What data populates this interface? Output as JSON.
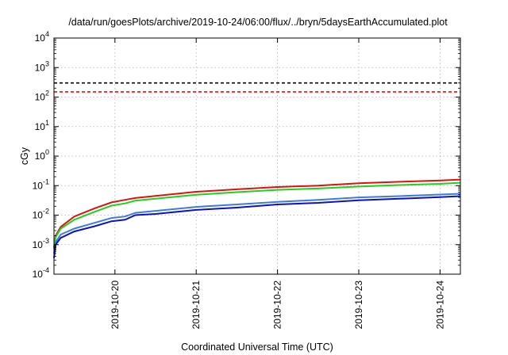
{
  "chart_data": {
    "type": "line",
    "title": "/data/run/goesPlots/archive/2019-10-24/06:00/flux/../bryn/5daysEarthAccumulated.plot",
    "xlabel": "Coordinated Universal Time (UTC)",
    "ylabel": "cGy",
    "x_scale": "time",
    "y_scale": "log",
    "xlim": [
      "2019-10-19 06:00",
      "2019-10-24 06:00"
    ],
    "ylim": [
      0.0001,
      10000
    ],
    "grid": true,
    "legend": "none",
    "x_ticks": [
      "2019-10-20",
      "2019-10-21",
      "2019-10-22",
      "2019-10-23",
      "2019-10-24"
    ],
    "y_ticks": [
      {
        "base": "10",
        "exp": "-4",
        "value": 0.0001
      },
      {
        "base": "10",
        "exp": "-3",
        "value": 0.001
      },
      {
        "base": "10",
        "exp": "-2",
        "value": 0.01
      },
      {
        "base": "10",
        "exp": "-1",
        "value": 0.1
      },
      {
        "base": "10",
        "exp": "0",
        "value": 1
      },
      {
        "base": "10",
        "exp": "1",
        "value": 10
      },
      {
        "base": "10",
        "exp": "2",
        "value": 100
      },
      {
        "base": "10",
        "exp": "3",
        "value": 1000
      },
      {
        "base": "10",
        "exp": "4",
        "value": 10000
      }
    ],
    "thresholds": [
      {
        "value": 300,
        "color": "#000000",
        "style": "dashed"
      },
      {
        "value": 150,
        "color": "#ff0000",
        "style": "dashed"
      }
    ],
    "series": [
      {
        "color": "#e01010",
        "points": [
          [
            "2019-10-19 06:00",
            0.0008
          ],
          [
            "2019-10-19 06:30",
            0.002
          ],
          [
            "2019-10-19 08:00",
            0.004
          ],
          [
            "2019-10-19 12:00",
            0.009
          ],
          [
            "2019-10-19 18:00",
            0.017
          ],
          [
            "2019-10-19 23:00",
            0.027
          ],
          [
            "2019-10-20 03:00",
            0.033
          ],
          [
            "2019-10-20 06:00",
            0.038
          ],
          [
            "2019-10-20 12:00",
            0.045
          ],
          [
            "2019-10-21 00:00",
            0.062
          ],
          [
            "2019-10-21 12:00",
            0.075
          ],
          [
            "2019-10-22 00:00",
            0.09
          ],
          [
            "2019-10-22 12:00",
            0.1
          ],
          [
            "2019-10-23 00:00",
            0.12
          ],
          [
            "2019-10-23 12:00",
            0.135
          ],
          [
            "2019-10-24 00:00",
            0.15
          ],
          [
            "2019-10-24 06:00",
            0.16
          ]
        ]
      },
      {
        "color": "#20d020",
        "points": [
          [
            "2019-10-19 06:00",
            0.0007
          ],
          [
            "2019-10-19 06:30",
            0.0018
          ],
          [
            "2019-10-19 08:00",
            0.0035
          ],
          [
            "2019-10-19 12:00",
            0.007
          ],
          [
            "2019-10-19 18:00",
            0.013
          ],
          [
            "2019-10-19 23:00",
            0.021
          ],
          [
            "2019-10-20 03:00",
            0.025
          ],
          [
            "2019-10-20 06:00",
            0.031
          ],
          [
            "2019-10-20 12:00",
            0.036
          ],
          [
            "2019-10-21 00:00",
            0.049
          ],
          [
            "2019-10-21 12:00",
            0.06
          ],
          [
            "2019-10-22 00:00",
            0.072
          ],
          [
            "2019-10-22 12:00",
            0.08
          ],
          [
            "2019-10-23 00:00",
            0.093
          ],
          [
            "2019-10-23 12:00",
            0.105
          ],
          [
            "2019-10-24 00:00",
            0.115
          ],
          [
            "2019-10-24 06:00",
            0.125
          ]
        ]
      },
      {
        "color": "#3a7de0",
        "points": [
          [
            "2019-10-19 06:00",
            0.0005
          ],
          [
            "2019-10-19 06:30",
            0.0012
          ],
          [
            "2019-10-19 08:00",
            0.0022
          ],
          [
            "2019-10-19 12:00",
            0.0035
          ],
          [
            "2019-10-19 18:00",
            0.0055
          ],
          [
            "2019-10-19 23:00",
            0.008
          ],
          [
            "2019-10-20 03:00",
            0.009
          ],
          [
            "2019-10-20 06:00",
            0.012
          ],
          [
            "2019-10-20 12:00",
            0.014
          ],
          [
            "2019-10-21 00:00",
            0.019
          ],
          [
            "2019-10-21 12:00",
            0.023
          ],
          [
            "2019-10-22 00:00",
            0.028
          ],
          [
            "2019-10-22 12:00",
            0.033
          ],
          [
            "2019-10-23 00:00",
            0.04
          ],
          [
            "2019-10-23 12:00",
            0.044
          ],
          [
            "2019-10-24 00:00",
            0.05
          ],
          [
            "2019-10-24 06:00",
            0.053
          ]
        ]
      },
      {
        "color": "#1010c0",
        "points": [
          [
            "2019-10-19 06:00",
            0.00035
          ],
          [
            "2019-10-19 06:30",
            0.001
          ],
          [
            "2019-10-19 08:00",
            0.0017
          ],
          [
            "2019-10-19 12:00",
            0.0028
          ],
          [
            "2019-10-19 18:00",
            0.0042
          ],
          [
            "2019-10-19 23:00",
            0.0062
          ],
          [
            "2019-10-20 03:00",
            0.007
          ],
          [
            "2019-10-20 06:00",
            0.01
          ],
          [
            "2019-10-20 12:00",
            0.011
          ],
          [
            "2019-10-21 00:00",
            0.015
          ],
          [
            "2019-10-21 12:00",
            0.018
          ],
          [
            "2019-10-22 00:00",
            0.023
          ],
          [
            "2019-10-22 12:00",
            0.026
          ],
          [
            "2019-10-23 00:00",
            0.032
          ],
          [
            "2019-10-23 12:00",
            0.036
          ],
          [
            "2019-10-24 00:00",
            0.041
          ],
          [
            "2019-10-24 06:00",
            0.044
          ]
        ]
      }
    ]
  }
}
